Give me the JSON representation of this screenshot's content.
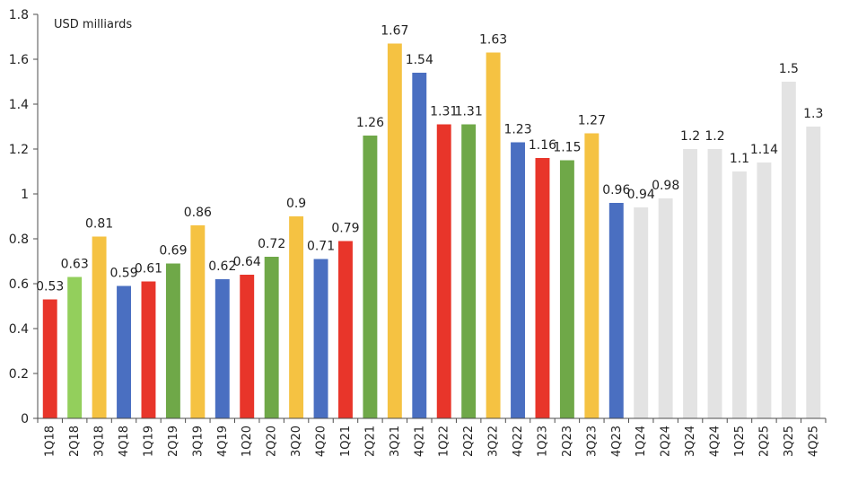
{
  "chart_data": {
    "type": "bar",
    "unit_label": "USD milliards",
    "ylim": [
      0,
      1.8
    ],
    "y_ticks": [
      "0",
      "0.2",
      "0.4",
      "0.6",
      "0.8",
      "1",
      "1.2",
      "1.4",
      "1.6",
      "1.8"
    ],
    "y_tick_values": [
      0,
      0.2,
      0.4,
      0.6,
      0.8,
      1.0,
      1.2,
      1.4,
      1.6,
      1.8
    ],
    "categories": [
      "1Q18",
      "2Q18",
      "3Q18",
      "4Q18",
      "1Q19",
      "2Q19",
      "3Q19",
      "4Q19",
      "1Q20",
      "2Q20",
      "3Q20",
      "4Q20",
      "1Q21",
      "2Q21",
      "3Q21",
      "4Q21",
      "1Q22",
      "2Q22",
      "3Q22",
      "4Q22",
      "1Q23",
      "2Q23",
      "3Q23",
      "4Q23",
      "1Q24",
      "2Q24",
      "3Q24",
      "4Q24",
      "1Q25",
      "2Q25",
      "3Q25",
      "4Q25"
    ],
    "values": [
      0.53,
      0.63,
      0.81,
      0.59,
      0.61,
      0.69,
      0.86,
      0.62,
      0.64,
      0.72,
      0.9,
      0.71,
      0.79,
      1.26,
      1.67,
      1.54,
      1.31,
      1.31,
      1.63,
      1.23,
      1.16,
      1.15,
      1.27,
      0.96,
      0.94,
      0.98,
      1.2,
      1.2,
      1.1,
      1.14,
      1.5,
      1.3
    ],
    "value_labels": [
      "0.53",
      "0.63",
      "0.81",
      "0.59",
      "0.61",
      "0.69",
      "0.86",
      "0.62",
      "0.64",
      "0.72",
      "0.9",
      "0.71",
      "0.79",
      "1.26",
      "1.67",
      "1.54",
      "1.31",
      "1.31",
      "1.63",
      "1.23",
      "1.16",
      "1.15",
      "1.27",
      "0.96",
      "0.94",
      "0.98",
      "1.2",
      "1.2",
      "1.1",
      "1.14",
      "1.5",
      "1.3"
    ],
    "colors": [
      "#e8352a",
      "#93cf5c",
      "#f5c242",
      "#4a6fc1",
      "#e8352a",
      "#6fa848",
      "#f5c242",
      "#4a6fc1",
      "#e8352a",
      "#6fa848",
      "#f5c242",
      "#4a6fc1",
      "#e8352a",
      "#6fa848",
      "#f5c242",
      "#4a6fc1",
      "#e8352a",
      "#6fa848",
      "#f5c242",
      "#4a6fc1",
      "#e8352a",
      "#6fa848",
      "#f5c242",
      "#4a6fc1",
      "#e3e3e3",
      "#e3e3e3",
      "#e3e3e3",
      "#e3e3e3",
      "#e3e3e3",
      "#e3e3e3",
      "#e3e3e3",
      "#e3e3e3"
    ],
    "axis_color": "#4d4d4d",
    "text_color": "#222222",
    "grid": false,
    "legend": "none"
  }
}
